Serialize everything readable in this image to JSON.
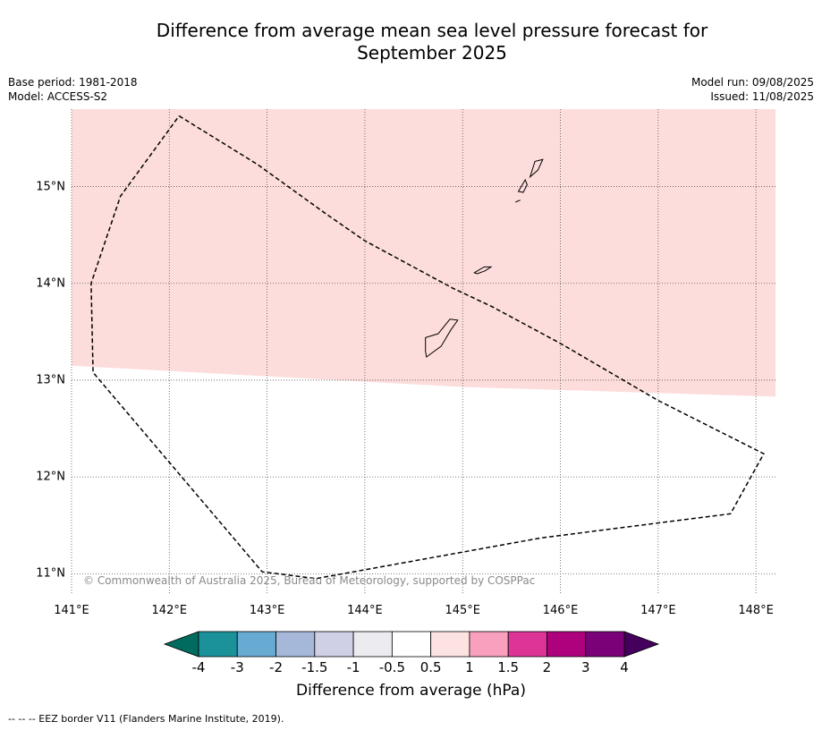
{
  "title_line1": "Difference from average mean sea level pressure forecast for",
  "title_line2": "September 2025",
  "meta": {
    "base_period": "Base period: 1981-2018",
    "model": "Model: ACCESS-S2",
    "model_run": "Model run: 09/08/2025",
    "issued": "Issued: 11/08/2025"
  },
  "map": {
    "lon_range": [
      141.0,
      148.2
    ],
    "lat_range": [
      10.8,
      15.8
    ],
    "lat_ticks": [
      {
        "value": 15,
        "label": "15°N"
      },
      {
        "value": 14,
        "label": "14°N"
      },
      {
        "value": 13,
        "label": "13°N"
      },
      {
        "value": 12,
        "label": "12°N"
      },
      {
        "value": 11,
        "label": "11°N"
      }
    ],
    "lon_ticks": [
      {
        "value": 141,
        "label": "141°E"
      },
      {
        "value": 142,
        "label": "142°E"
      },
      {
        "value": 143,
        "label": "143°E"
      },
      {
        "value": 144,
        "label": "144°E"
      },
      {
        "value": 145,
        "label": "145°E"
      },
      {
        "value": 146,
        "label": "146°E"
      },
      {
        "value": 147,
        "label": "147°E"
      },
      {
        "value": 148,
        "label": "148°E"
      }
    ],
    "shaded_region": {
      "range": "0.5 to 1",
      "color": "#fddcdc",
      "southern_boundary": [
        [
          141.0,
          13.15
        ],
        [
          145.0,
          12.93
        ],
        [
          148.2,
          12.83
        ]
      ]
    },
    "eez_border": [
      [
        142.1,
        15.73
      ],
      [
        142.9,
        15.23
      ],
      [
        143.6,
        14.72
      ],
      [
        144.0,
        14.44
      ],
      [
        144.9,
        13.95
      ],
      [
        145.3,
        13.76
      ],
      [
        146.0,
        13.38
      ],
      [
        147.0,
        12.79
      ],
      [
        148.08,
        12.24
      ],
      [
        147.74,
        11.62
      ],
      [
        145.8,
        11.37
      ],
      [
        143.5,
        10.95
      ],
      [
        142.95,
        11.02
      ],
      [
        141.22,
        13.08
      ],
      [
        141.2,
        14.0
      ],
      [
        141.5,
        14.9
      ],
      [
        142.1,
        15.73
      ]
    ],
    "islands": [
      {
        "name": "Guam",
        "coords": [
          [
            144.63,
            13.24
          ],
          [
            144.78,
            13.35
          ],
          [
            144.88,
            13.52
          ],
          [
            144.95,
            13.62
          ],
          [
            144.87,
            13.63
          ],
          [
            144.75,
            13.48
          ],
          [
            144.62,
            13.44
          ],
          [
            144.62,
            13.3
          ],
          [
            144.63,
            13.24
          ]
        ]
      },
      {
        "name": "Rota",
        "coords": [
          [
            145.12,
            14.11
          ],
          [
            145.22,
            14.17
          ],
          [
            145.29,
            14.17
          ],
          [
            145.23,
            14.13
          ],
          [
            145.15,
            14.1
          ],
          [
            145.12,
            14.11
          ]
        ]
      },
      {
        "name": "Tinian",
        "coords": [
          [
            145.57,
            14.95
          ],
          [
            145.64,
            15.07
          ],
          [
            145.66,
            15.02
          ],
          [
            145.62,
            14.94
          ],
          [
            145.57,
            14.95
          ]
        ]
      },
      {
        "name": "Saipan",
        "coords": [
          [
            145.69,
            15.1
          ],
          [
            145.74,
            15.26
          ],
          [
            145.82,
            15.28
          ],
          [
            145.77,
            15.17
          ],
          [
            145.69,
            15.1
          ]
        ]
      },
      {
        "name": "Aguijan",
        "coords": [
          [
            145.54,
            14.84
          ],
          [
            145.59,
            14.86
          ]
        ]
      }
    ]
  },
  "copyright": "© Commonwealth of Australia 2025, Bureau of Meteorology, supported by COSPPac",
  "colorbar": {
    "title": "Difference from average (hPa)",
    "under_color": "#006b5e",
    "over_color": "#45005e",
    "colors": [
      "#1b9199",
      "#67aad2",
      "#a5b8da",
      "#cfcfe6",
      "#ececf0",
      "#ffffff",
      "#fde2e2",
      "#f8a0bd",
      "#dd3497",
      "#ae017e",
      "#7a0177"
    ],
    "labels": [
      "-4",
      "-3",
      "-2",
      "-1.5",
      "-1",
      "-0.5",
      "0.5",
      "1",
      "1.5",
      "2",
      "3",
      "4"
    ]
  },
  "footnote": "--  --  -- EEZ border V11 (Flanders Marine Institute, 2019)."
}
